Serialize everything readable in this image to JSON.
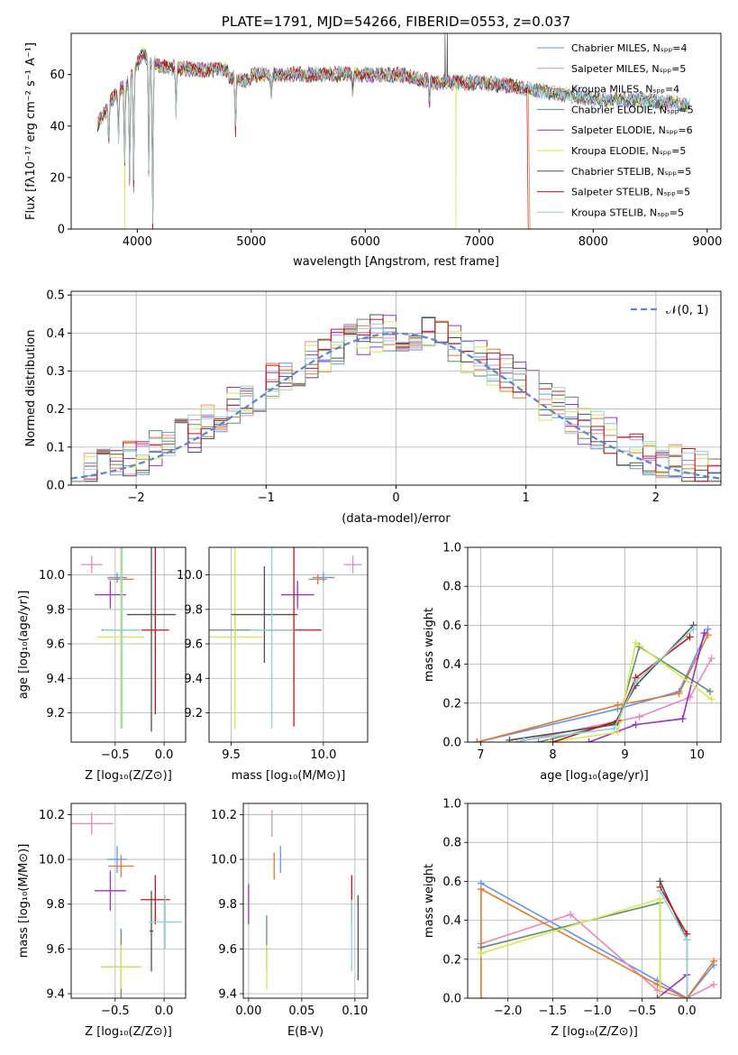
{
  "colors": [
    "#6495ed",
    "#e887b8",
    "#e07a2c",
    "#5f8f6d",
    "#9b30c8",
    "#d2ea4f",
    "#505050",
    "#c81414",
    "#8ed3d8"
  ],
  "chart_data": [
    {
      "id": "spectrum",
      "type": "line",
      "title": "PLATE=1791, MJD=54266, FIBERID=0553, z=0.037",
      "xlabel": "wavelength [Angstrom, rest frame]",
      "ylabel": "Flux [fλ10⁻¹⁷ erg cm⁻² s⁻¹ A⁻¹]",
      "xlim": [
        3420,
        9120
      ],
      "ylim": [
        0,
        76
      ],
      "xticks": [
        "4000",
        "5000",
        "6000",
        "7000",
        "8000",
        "9000"
      ],
      "yticks": [
        "0",
        "20",
        "40",
        "60"
      ],
      "grid": false,
      "legend": "top-right",
      "series": [
        {
          "name": "Chabrier MILES, Nₛₚₚ=4"
        },
        {
          "name": "Salpeter MILES, Nₛₚₚ=5"
        },
        {
          "name": "Kroupa MILES, Nₛₚₚ=4"
        },
        {
          "name": "Chabrier ELODIE, Nₛₚₚ=5"
        },
        {
          "name": "Salpeter ELODIE, Nₛₚₚ=6"
        },
        {
          "name": "Kroupa ELODIE, Nₛₚₚ=5"
        },
        {
          "name": "Chabrier STELIB, Nₛₚₚ=5"
        },
        {
          "name": "Salpeter STELIB, Nₛₚₚ=5"
        },
        {
          "name": "Kroupa STELIB, Nₛₚₚ=5"
        }
      ],
      "continuum": {
        "x": [
          3650,
          3700,
          3800,
          3900,
          4000,
          4050,
          4200,
          4500,
          4800,
          5000,
          5300,
          5600,
          6000,
          6300,
          6600,
          6900,
          7200,
          7500,
          7800,
          8100,
          8400,
          8700,
          8850
        ],
        "y": [
          41,
          44,
          52,
          56,
          64,
          68,
          63,
          62,
          62,
          60,
          60,
          60,
          60,
          60,
          57,
          57,
          56,
          54,
          52,
          50,
          50,
          49,
          48
        ]
      },
      "features": [
        {
          "x": 3750,
          "y": 32
        },
        {
          "x": 3835,
          "y": 34
        },
        {
          "x": 3889,
          "y": 24
        },
        {
          "x": 3933,
          "y": 18
        },
        {
          "x": 3968,
          "y": 16
        },
        {
          "x": 4101,
          "y": 22
        },
        {
          "x": 4135,
          "y": 0
        },
        {
          "x": 4340,
          "y": 45
        },
        {
          "x": 4861,
          "y": 40
        },
        {
          "x": 5175,
          "y": 50
        },
        {
          "x": 5890,
          "y": 52
        },
        {
          "x": 6563,
          "y": 48
        }
      ],
      "drops": [
        {
          "series": 5,
          "x": 3890,
          "to": 0
        },
        {
          "series": 5,
          "x": 6795,
          "to": 0
        },
        {
          "series": 7,
          "x": 7420,
          "to": 0
        },
        {
          "series": 2,
          "x": 7435,
          "to": 0
        }
      ],
      "spikes": [
        {
          "series": 6,
          "x": 6700,
          "to": 76
        },
        {
          "series": 6,
          "x": 6720,
          "to": 76
        }
      ]
    },
    {
      "id": "residuals",
      "type": "line",
      "xlabel": "(data-model)/error",
      "ylabel": "Normed distribution",
      "xlim": [
        -2.5,
        2.5
      ],
      "ylim": [
        0,
        0.51
      ],
      "xticks": [
        "−2",
        "−1",
        "0",
        "1",
        "2"
      ],
      "yticks": [
        "0.0",
        "0.1",
        "0.2",
        "0.3",
        "0.4",
        "0.5"
      ],
      "grid": true,
      "legend": "top-right",
      "reference": {
        "name": "𝒩(0, 1)",
        "mean": 0,
        "sigma": 1
      },
      "bins": {
        "start": -2.5,
        "width": 0.1,
        "count": 50
      },
      "series_names": [
        "Chabrier MILES",
        "Salpeter MILES",
        "Kroupa MILES",
        "Chabrier ELODIE",
        "Salpeter ELODIE",
        "Kroupa ELODIE",
        "Chabrier STELIB",
        "Salpeter STELIB",
        "Kroupa STELIB"
      ]
    },
    {
      "id": "z-age",
      "type": "scatter",
      "xlabel": "Z [log₁₀(Z/Z⊙)]",
      "ylabel": "age  [log₁₀(age/yr)]",
      "xlim": [
        -0.95,
        0.22
      ],
      "ylim": [
        9.03,
        10.16
      ],
      "xticks": [
        {
          "v": -0.5,
          "t": "−0.5"
        },
        {
          "v": 0.0,
          "t": "0.0"
        }
      ],
      "yticks": [
        {
          "v": 9.2,
          "t": "9.2"
        },
        {
          "v": 9.4,
          "t": "9.4"
        },
        {
          "v": 9.6,
          "t": "9.6"
        },
        {
          "v": 9.8,
          "t": "9.8"
        },
        {
          "v": 10.0,
          "t": "10.0"
        }
      ],
      "grid": true,
      "points": [
        {
          "x": -0.48,
          "y": 9.985,
          "dx": 0.1,
          "dy": 0.03
        },
        {
          "x": -0.74,
          "y": 10.06,
          "dx": 0.11,
          "dy": 0.05
        },
        {
          "x": -0.44,
          "y": 9.975,
          "dx": 0.13,
          "dy": 0.03
        },
        {
          "x": -0.44,
          "y": 9.68,
          "dx": 0.2,
          "dy": 0.57
        },
        {
          "x": -0.55,
          "y": 9.885,
          "dx": 0.16,
          "dy": 0.08
        },
        {
          "x": -0.44,
          "y": 9.64,
          "dx": 0.24,
          "dy": 0.53
        },
        {
          "x": -0.13,
          "y": 9.77,
          "dx": 0.25,
          "dy": 0.68
        },
        {
          "x": -0.09,
          "y": 9.68,
          "dx": 0.14,
          "dy": 0.49
        },
        {
          "x": -0.43,
          "y": 9.68,
          "dx": 0.19,
          "dy": 0.57
        }
      ]
    },
    {
      "id": "mass-age",
      "type": "scatter",
      "xlabel": "mass [log₁₀(M/M⊙)]",
      "ylabel": "",
      "xlim": [
        9.38,
        10.24
      ],
      "ylim": [
        9.03,
        10.16
      ],
      "xticks": [
        {
          "v": 9.5,
          "t": "9.5"
        },
        {
          "v": 10.0,
          "t": "10.0"
        }
      ],
      "yticks": [
        {
          "v": 9.2,
          "t": "9.2"
        },
        {
          "v": 9.4,
          "t": "9.4"
        },
        {
          "v": 9.6,
          "t": "9.6"
        },
        {
          "v": 9.8,
          "t": "9.8"
        },
        {
          "v": 10.0,
          "t": "10.0"
        }
      ],
      "grid": true,
      "points": [
        {
          "x": 10.0,
          "y": 9.985,
          "dx": 0.06,
          "dy": 0.03
        },
        {
          "x": 10.16,
          "y": 10.06,
          "dx": 0.05,
          "dy": 0.05
        },
        {
          "x": 9.97,
          "y": 9.975,
          "dx": 0.05,
          "dy": 0.03
        },
        {
          "x": 9.52,
          "y": 9.68,
          "dx": 0.17,
          "dy": 0.1
        },
        {
          "x": 9.86,
          "y": 9.885,
          "dx": 0.09,
          "dy": 0.08
        },
        {
          "x": 9.52,
          "y": 9.64,
          "dx": 0.15,
          "dy": 0.53
        },
        {
          "x": 9.68,
          "y": 9.77,
          "dx": 0.18,
          "dy": 0.28
        },
        {
          "x": 9.84,
          "y": 9.68,
          "dx": 0.15,
          "dy": 0.56
        },
        {
          "x": 9.72,
          "y": 9.68,
          "dx": 0.12,
          "dy": 0.57
        }
      ]
    },
    {
      "id": "age-weight",
      "type": "line",
      "xlabel": "age  [log₁₀(age/yr)]",
      "ylabel": "mass weight",
      "xlim": [
        6.82,
        10.33
      ],
      "ylim": [
        0,
        1
      ],
      "xticks": [
        {
          "v": 7,
          "t": "7"
        },
        {
          "v": 8,
          "t": "8"
        },
        {
          "v": 9,
          "t": "9"
        },
        {
          "v": 10,
          "t": "10"
        }
      ],
      "yticks": [
        {
          "v": 0,
          "t": "0.0"
        },
        {
          "v": 0.2,
          "t": "0.2"
        },
        {
          "v": 0.4,
          "t": "0.4"
        },
        {
          "v": 0.6,
          "t": "0.6"
        },
        {
          "v": 0.8,
          "t": "0.8"
        },
        {
          "v": 1.0,
          "t": "1.0"
        }
      ],
      "grid": true,
      "series": [
        {
          "x": [
            6.95,
            8.9,
            9.75,
            10.15
          ],
          "y": [
            0.0,
            0.17,
            0.26,
            0.58
          ]
        },
        {
          "x": [
            7.5,
            9.2,
            9.9,
            10.2
          ],
          "y": [
            0.0,
            0.13,
            0.23,
            0.43
          ]
        },
        {
          "x": [
            6.95,
            8.9,
            9.75,
            10.15
          ],
          "y": [
            0.0,
            0.19,
            0.25,
            0.55
          ]
        },
        {
          "x": [
            7.8,
            8.9,
            9.2,
            10.18
          ],
          "y": [
            0.0,
            0.1,
            0.49,
            0.26
          ]
        },
        {
          "x": [
            8.5,
            9.15,
            9.8,
            10.1
          ],
          "y": [
            0.0,
            0.09,
            0.12,
            0.56
          ]
        },
        {
          "x": [
            7.95,
            8.9,
            9.15,
            10.2
          ],
          "y": [
            0.0,
            0.05,
            0.51,
            0.22
          ]
        },
        {
          "x": [
            7.4,
            8.85,
            9.15,
            9.95
          ],
          "y": [
            0.01,
            0.09,
            0.29,
            0.6
          ]
        },
        {
          "x": [
            8.0,
            8.9,
            9.15,
            9.9
          ],
          "y": [
            0.0,
            0.11,
            0.33,
            0.54
          ]
        },
        {
          "x": [
            7.6,
            8.85,
            9.15,
            9.95
          ],
          "y": [
            0.01,
            0.07,
            0.31,
            0.58
          ]
        }
      ]
    },
    {
      "id": "z-mass",
      "type": "scatter",
      "xlabel": "Z [log₁₀(Z/Z⊙)]",
      "ylabel": "mass [log₁₀(M/M⊙)]",
      "xlim": [
        -0.95,
        0.22
      ],
      "ylim": [
        9.38,
        10.25
      ],
      "xticks": [
        {
          "v": -0.5,
          "t": "−0.5"
        },
        {
          "v": 0.0,
          "t": "0.0"
        }
      ],
      "yticks": [
        {
          "v": 9.4,
          "t": "9.4"
        },
        {
          "v": 9.6,
          "t": "9.6"
        },
        {
          "v": 9.8,
          "t": "9.8"
        },
        {
          "v": 10.0,
          "t": "10.0"
        },
        {
          "v": 10.2,
          "t": "10.2"
        }
      ],
      "grid": true,
      "points": [
        {
          "x": -0.48,
          "y": 10.0,
          "dx": 0.1,
          "dy": 0.06
        },
        {
          "x": -0.74,
          "y": 10.16,
          "dx": 0.22,
          "dy": 0.05
        },
        {
          "x": -0.44,
          "y": 9.97,
          "dx": 0.13,
          "dy": 0.05
        },
        {
          "x": -0.44,
          "y": 9.52,
          "dx": 0.2,
          "dy": 0.17
        },
        {
          "x": -0.55,
          "y": 9.86,
          "dx": 0.16,
          "dy": 0.09
        },
        {
          "x": -0.44,
          "y": 9.52,
          "dx": 0.21,
          "dy": 0.1
        },
        {
          "x": -0.13,
          "y": 9.68,
          "dx": 0.02,
          "dy": 0.18
        },
        {
          "x": -0.09,
          "y": 9.82,
          "dx": 0.15,
          "dy": 0.11
        },
        {
          "x": 0.01,
          "y": 9.72,
          "dx": 0.17,
          "dy": 0.12
        }
      ]
    },
    {
      "id": "ebv-mass",
      "type": "scatter",
      "xlabel": "E(B-V)",
      "ylabel": "",
      "xlim": [
        -0.005,
        0.112
      ],
      "ylim": [
        9.38,
        10.25
      ],
      "xticks": [
        {
          "v": 0.0,
          "t": "0.00"
        },
        {
          "v": 0.05,
          "t": "0.05"
        },
        {
          "v": 0.1,
          "t": "0.10"
        }
      ],
      "yticks": [
        {
          "v": 9.4,
          "t": "9.4"
        },
        {
          "v": 9.6,
          "t": "9.6"
        },
        {
          "v": 9.8,
          "t": "9.8"
        },
        {
          "v": 10.0,
          "t": "10.0"
        },
        {
          "v": 10.2,
          "t": "10.2"
        }
      ],
      "grid": true,
      "points": [
        {
          "x": 0.03,
          "y": 10.0,
          "dx": 0,
          "dy": 0.06
        },
        {
          "x": 0.022,
          "y": 10.16,
          "dx": 0,
          "dy": 0.06
        },
        {
          "x": 0.024,
          "y": 9.97,
          "dx": 0,
          "dy": 0.06
        },
        {
          "x": 0.017,
          "y": 9.63,
          "dx": 0,
          "dy": 0.12
        },
        {
          "x": 0.0,
          "y": 9.8,
          "dx": 0,
          "dy": 0.09
        },
        {
          "x": 0.017,
          "y": 9.52,
          "dx": 0,
          "dy": 0.1
        },
        {
          "x": 0.103,
          "y": 9.65,
          "dx": 0,
          "dy": 0.19
        },
        {
          "x": 0.097,
          "y": 9.82,
          "dx": 0,
          "dy": 0.11
        },
        {
          "x": 0.097,
          "y": 9.66,
          "dx": 0,
          "dy": 0.16
        }
      ]
    },
    {
      "id": "z-weight",
      "type": "line",
      "xlabel": "Z [log₁₀(Z/Z⊙)]",
      "ylabel": "mass weight",
      "xlim": [
        -2.45,
        0.38
      ],
      "ylim": [
        0,
        1
      ],
      "xticks": [
        {
          "v": -2.0,
          "t": "−2.0"
        },
        {
          "v": -1.5,
          "t": "−1.5"
        },
        {
          "v": -1.0,
          "t": "−1.0"
        },
        {
          "v": -0.5,
          "t": "−0.5"
        },
        {
          "v": 0.0,
          "t": "0.0"
        }
      ],
      "yticks": [
        {
          "v": 0,
          "t": "0.0"
        },
        {
          "v": 0.2,
          "t": "0.2"
        },
        {
          "v": 0.4,
          "t": "0.4"
        },
        {
          "v": 0.6,
          "t": "0.6"
        },
        {
          "v": 0.8,
          "t": "0.8"
        },
        {
          "v": 1.0,
          "t": "1.0"
        }
      ],
      "grid": true,
      "series": [
        {
          "x": [
            -2.3,
            -0.33,
            0.0,
            0.3
          ],
          "y": [
            0.59,
            0.09,
            0.0,
            0.17
          ]
        },
        {
          "x": [
            -2.3,
            -1.3,
            -0.33,
            0.0,
            0.3
          ],
          "y": [
            0.28,
            0.43,
            0.04,
            0.0,
            0.07
          ]
        },
        {
          "x": [
            -2.3,
            -2.3,
            -0.33,
            0.0,
            0.3
          ],
          "y": [
            0.0,
            0.56,
            0.07,
            0.0,
            0.19
          ]
        },
        {
          "x": [
            -2.3,
            -0.3,
            -0.3,
            0.0
          ],
          "y": [
            0.26,
            0.49,
            0.0,
            0.0
          ]
        },
        {
          "x": [
            -0.33,
            0.0,
            0.0
          ],
          "y": [
            0.0,
            0.12,
            0.0
          ]
        },
        {
          "x": [
            -2.3,
            -0.3,
            -0.3,
            0.0
          ],
          "y": [
            0.23,
            0.51,
            0.0,
            0.0
          ]
        },
        {
          "x": [
            -0.3,
            0.0,
            0.0
          ],
          "y": [
            0.6,
            0.3,
            0.0
          ]
        },
        {
          "x": [
            -0.3,
            0.0,
            0.0
          ],
          "y": [
            0.57,
            0.33,
            0.0
          ]
        },
        {
          "x": [
            -0.3,
            0.0,
            0.0
          ],
          "y": [
            0.55,
            0.3,
            0.0
          ]
        }
      ]
    }
  ]
}
